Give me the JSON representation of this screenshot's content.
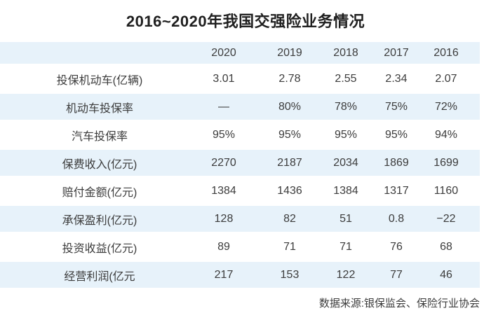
{
  "title": "2016~2020年我国交强险业务情况",
  "source": "数据来源:银保监会、保险行业协会",
  "colors": {
    "row_highlight": "#e7f2fa",
    "text": "#3c3c3c",
    "title_text": "#1f1f1f",
    "background": "#ffffff"
  },
  "table": {
    "year_headers": [
      "2020",
      "2019",
      "2018",
      "2017",
      "2016"
    ],
    "rows": [
      {
        "label": "投保机动车(亿辆)",
        "values": [
          "3.01",
          "2.78",
          "2.55",
          "2.34",
          "2.07"
        ]
      },
      {
        "label": "机动车投保率",
        "values": [
          "—",
          "80%",
          "78%",
          "75%",
          "72%"
        ]
      },
      {
        "label": "汽车投保率",
        "values": [
          "95%",
          "95%",
          "95%",
          "95%",
          "94%"
        ]
      },
      {
        "label": "保费收入(亿元)",
        "values": [
          "2270",
          "2187",
          "2034",
          "1869",
          "1699"
        ]
      },
      {
        "label": "赔付金额(亿元)",
        "values": [
          "1384",
          "1436",
          "1384",
          "1317",
          "1160"
        ]
      },
      {
        "label": "承保盈利(亿元)",
        "values": [
          "128",
          "82",
          "51",
          "0.8",
          "−22"
        ]
      },
      {
        "label": "投资收益(亿元)",
        "values": [
          "89",
          "71",
          "71",
          "76",
          "68"
        ]
      },
      {
        "label": "经营利润(亿元",
        "values": [
          "217",
          "153",
          "122",
          "77",
          "46"
        ]
      }
    ]
  },
  "chart_data": {
    "type": "table",
    "title": "2016~2020年我国交强险业务情况",
    "columns": [
      "2020",
      "2019",
      "2018",
      "2017",
      "2016"
    ],
    "series": [
      {
        "name": "投保机动车(亿辆)",
        "values": [
          3.01,
          2.78,
          2.55,
          2.34,
          2.07
        ]
      },
      {
        "name": "机动车投保率",
        "values": [
          null,
          "80%",
          "78%",
          "75%",
          "72%"
        ]
      },
      {
        "name": "汽车投保率",
        "values": [
          "95%",
          "95%",
          "95%",
          "95%",
          "94%"
        ]
      },
      {
        "name": "保费收入(亿元)",
        "values": [
          2270,
          2187,
          2034,
          1869,
          1699
        ]
      },
      {
        "name": "赔付金额(亿元)",
        "values": [
          1384,
          1436,
          1384,
          1317,
          1160
        ]
      },
      {
        "name": "承保盈利(亿元)",
        "values": [
          128,
          82,
          51,
          0.8,
          -22
        ]
      },
      {
        "name": "投资收益(亿元)",
        "values": [
          89,
          71,
          71,
          76,
          68
        ]
      },
      {
        "name": "经营利润(亿元)",
        "values": [
          217,
          153,
          122,
          77,
          46
        ]
      }
    ],
    "note": "数据来源:银保监会、保险行业协会",
    "layout": {
      "alternating_row_highlight": "#e7f2fa",
      "grid": false
    }
  }
}
